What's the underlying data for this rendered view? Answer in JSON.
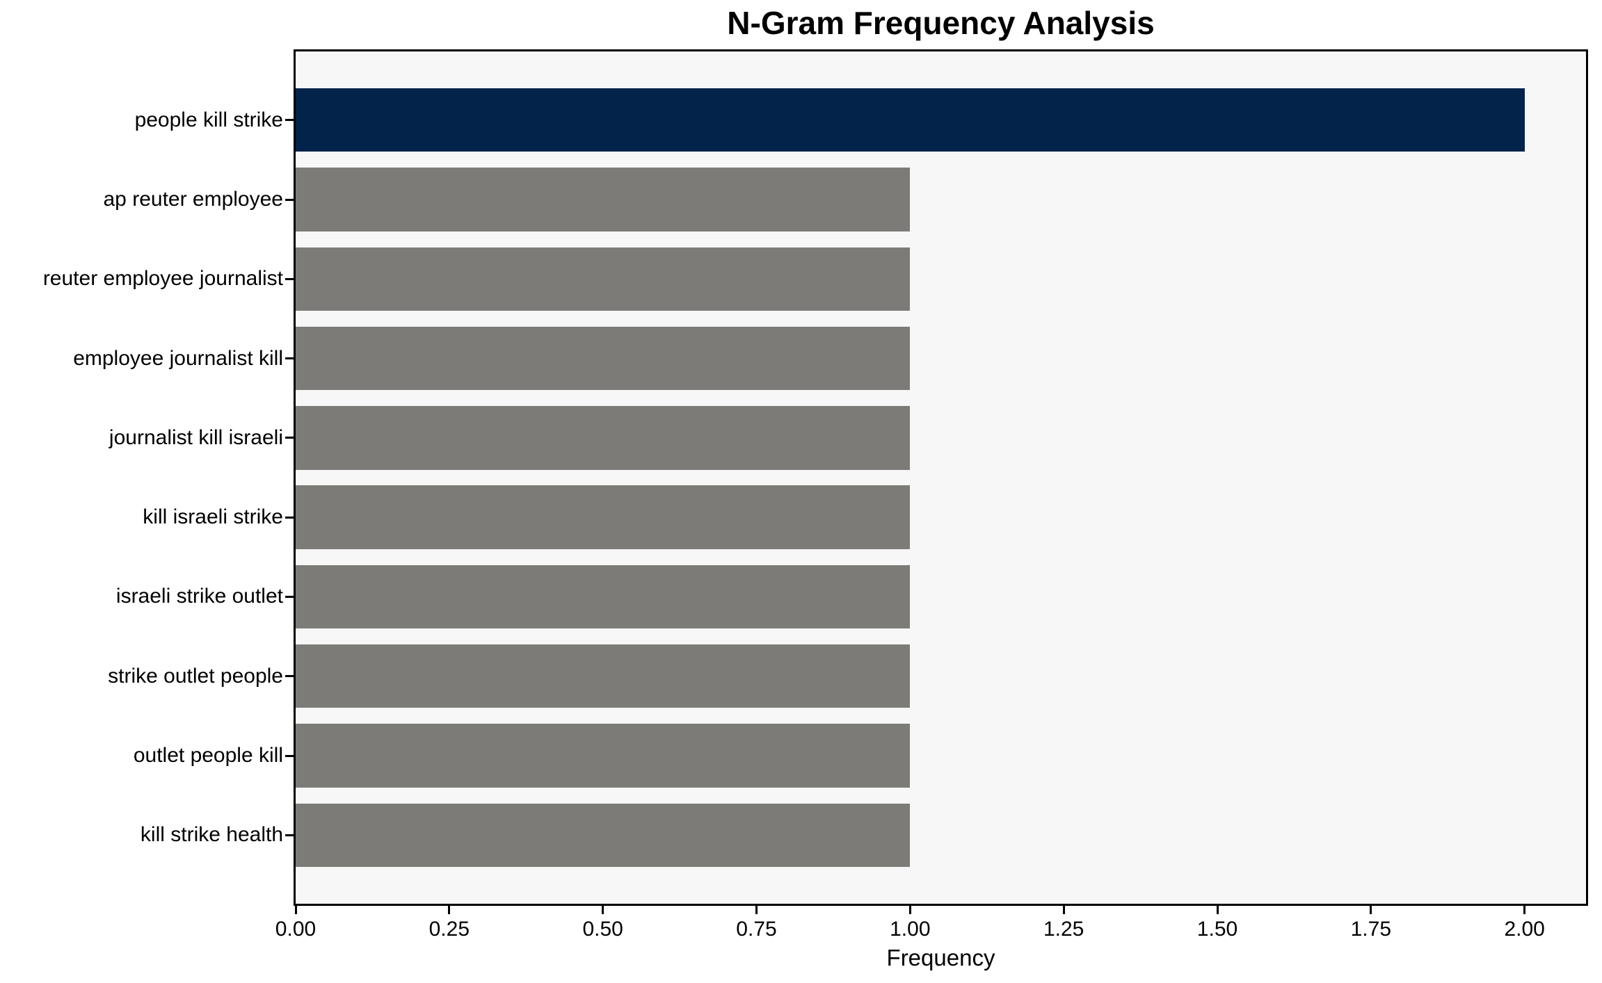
{
  "chart_data": {
    "type": "bar",
    "orientation": "horizontal",
    "title": "N-Gram Frequency Analysis",
    "xlabel": "Frequency",
    "ylabel": "",
    "categories": [
      "people kill strike",
      "ap reuter employee",
      "reuter employee journalist",
      "employee journalist kill",
      "journalist kill israeli",
      "kill israeli strike",
      "israeli strike outlet",
      "strike outlet people",
      "outlet people kill",
      "kill strike health"
    ],
    "values": [
      2,
      1,
      1,
      1,
      1,
      1,
      1,
      1,
      1,
      1
    ],
    "bar_colors": [
      "#03234b",
      "#7c7b78",
      "#7c7b78",
      "#7c7b78",
      "#7c7b78",
      "#7c7b78",
      "#7c7b78",
      "#7c7b78",
      "#7c7b78",
      "#7c7b78"
    ],
    "xlim": [
      0,
      2.1
    ],
    "x_tick_values": [
      0,
      0.25,
      0.5,
      0.75,
      1.0,
      1.25,
      1.5,
      1.75,
      2.0
    ],
    "x_tick_labels": [
      "0.00",
      "0.25",
      "0.50",
      "0.75",
      "1.00",
      "1.25",
      "1.50",
      "1.75",
      "2.00"
    ],
    "grid": false,
    "legend": null,
    "colors": {
      "highlight_bar": "#03234b",
      "default_bar": "#7c7b78",
      "plot_background": "#f7f7f7",
      "figure_background": "#ffffff",
      "spine": "#000000",
      "text": "#000000"
    }
  }
}
